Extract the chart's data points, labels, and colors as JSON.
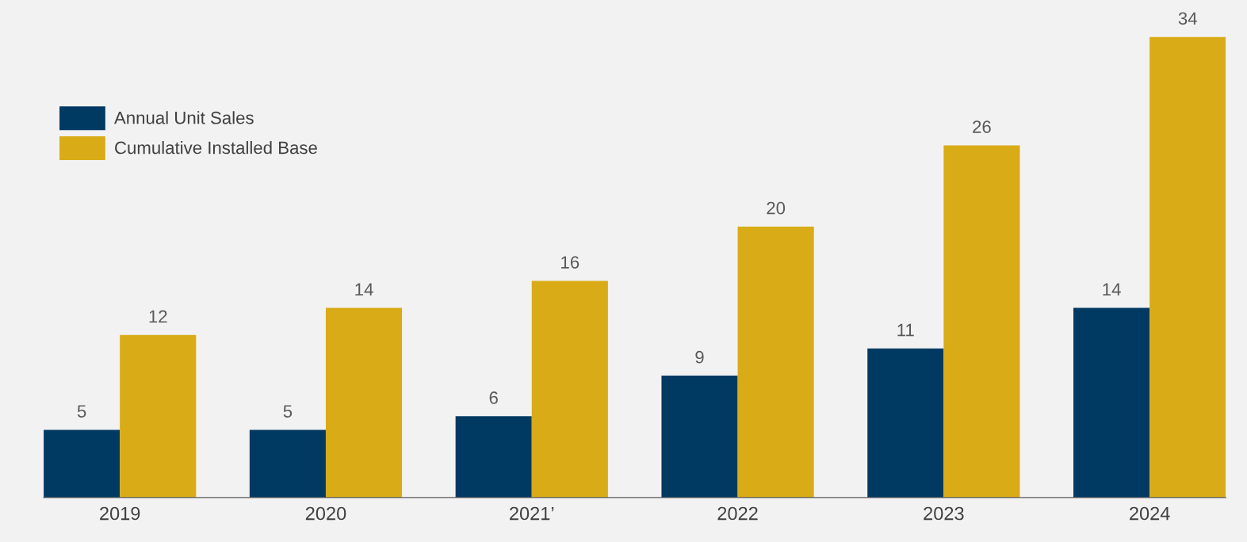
{
  "chart_data": {
    "type": "bar",
    "categories": [
      "2019",
      "2020",
      "2021’",
      "2022",
      "2023",
      "2024"
    ],
    "series": [
      {
        "name": "Annual Unit Sales",
        "color": "#003a63",
        "values": [
          5,
          5,
          6,
          9,
          11,
          14
        ]
      },
      {
        "name": "Cumulative Installed Base",
        "color": "#d9ab16",
        "values": [
          12,
          14,
          16,
          20,
          26,
          34
        ]
      }
    ],
    "data_labels": true,
    "legend": "top left",
    "grid": false
  }
}
